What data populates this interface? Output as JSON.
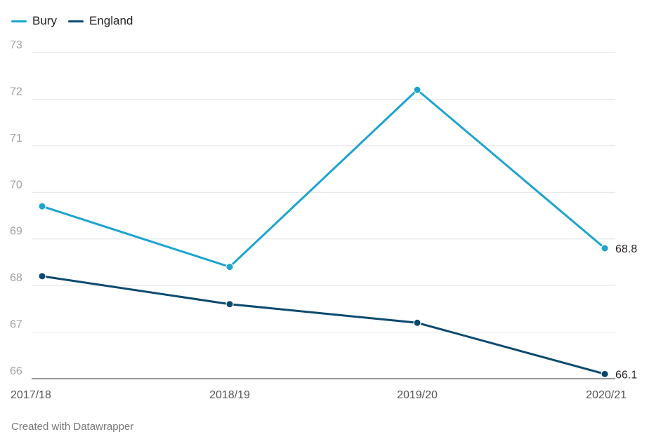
{
  "chart_data": {
    "type": "line",
    "categories": [
      "2017/18",
      "2018/19",
      "2019/20",
      "2020/21"
    ],
    "series": [
      {
        "name": "Bury",
        "values": [
          69.7,
          68.4,
          72.2,
          68.8
        ],
        "color": "#1ea3cf"
      },
      {
        "name": "England",
        "values": [
          68.2,
          67.6,
          67.2,
          66.1
        ],
        "color": "#0b4a6e"
      }
    ],
    "end_labels": [
      "68.8",
      "66.1"
    ],
    "ylim": [
      66,
      73
    ],
    "yticks": [
      "66",
      "67",
      "68",
      "69",
      "70",
      "71",
      "72",
      "73"
    ],
    "grid": true,
    "legend_position": "top-left"
  },
  "legend": [
    {
      "label": "Bury",
      "color": "#1ea3cf"
    },
    {
      "label": "England",
      "color": "#0b4a6e"
    }
  ],
  "footer": {
    "credit": "Created with Datawrapper"
  }
}
